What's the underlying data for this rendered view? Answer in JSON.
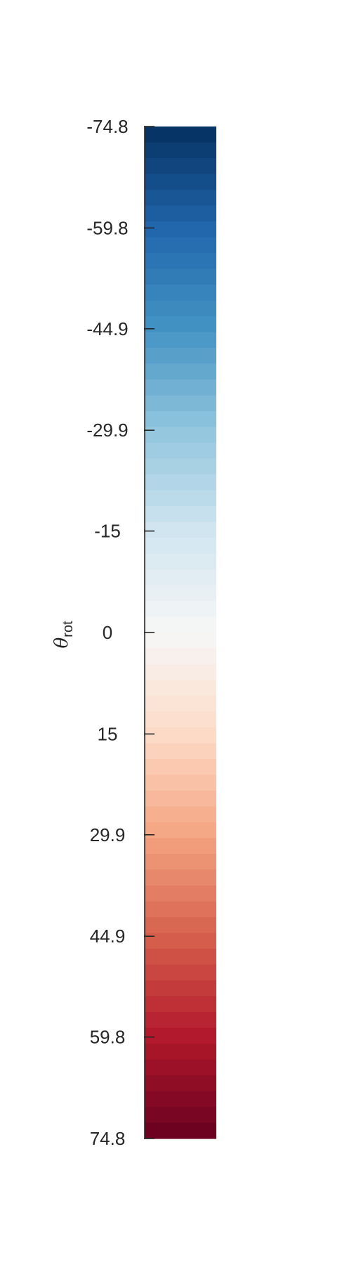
{
  "chart_data": {
    "type": "colorbar",
    "orientation": "vertical",
    "colormap": "RdBu_r",
    "axis_label": {
      "symbol": "θ",
      "subscript": "rot"
    },
    "range": [
      -74.8,
      74.8
    ],
    "levels": 64,
    "ticks": [
      {
        "value": -74.8,
        "label": "-74.8"
      },
      {
        "value": -59.8,
        "label": "-59.8"
      },
      {
        "value": -44.9,
        "label": "-44.9"
      },
      {
        "value": -29.9,
        "label": "-29.9"
      },
      {
        "value": -15,
        "label": "-15"
      },
      {
        "value": 0,
        "label": "0"
      },
      {
        "value": 15,
        "label": "15"
      },
      {
        "value": 29.9,
        "label": "29.9"
      },
      {
        "value": 44.9,
        "label": "44.9"
      },
      {
        "value": 59.8,
        "label": "59.8"
      },
      {
        "value": 74.8,
        "label": "74.8"
      }
    ],
    "colormap_anchors": [
      "#053061",
      "#2166ac",
      "#4393c3",
      "#92c5de",
      "#d1e5f0",
      "#f7f7f7",
      "#fddbc7",
      "#f4a582",
      "#d6604d",
      "#b2182b",
      "#67001f"
    ],
    "colors": {
      "spine": "#262626",
      "text": "#262626"
    }
  }
}
